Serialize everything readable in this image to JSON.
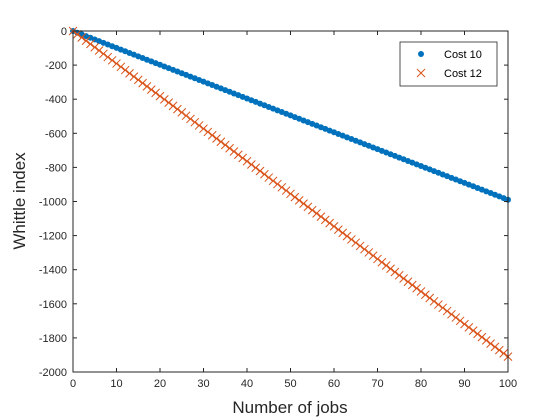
{
  "chart_data": {
    "type": "scatter",
    "title": "",
    "xlabel": "Number of jobs",
    "ylabel": "Whittle index",
    "xlim": [
      0,
      100
    ],
    "ylim": [
      -2000,
      0
    ],
    "xticks": [
      0,
      10,
      20,
      30,
      40,
      50,
      60,
      70,
      80,
      90,
      100
    ],
    "yticks": [
      0,
      -200,
      -400,
      -600,
      -800,
      -1000,
      -1200,
      -1400,
      -1600,
      -1800,
      -2000
    ],
    "grid": false,
    "legend_position": "top-right",
    "series": [
      {
        "name": "Cost 10",
        "marker": "dot",
        "color": "#0072BD",
        "x_start": 0,
        "x_end": 100,
        "x_step": 1,
        "y_at_x0": 0,
        "slope": -9.9
      },
      {
        "name": "Cost 12",
        "marker": "x",
        "color": "#D95319",
        "x_start": 0,
        "x_end": 100,
        "x_step": 1,
        "y_at_x0": 0,
        "slope": -19.1
      }
    ]
  }
}
